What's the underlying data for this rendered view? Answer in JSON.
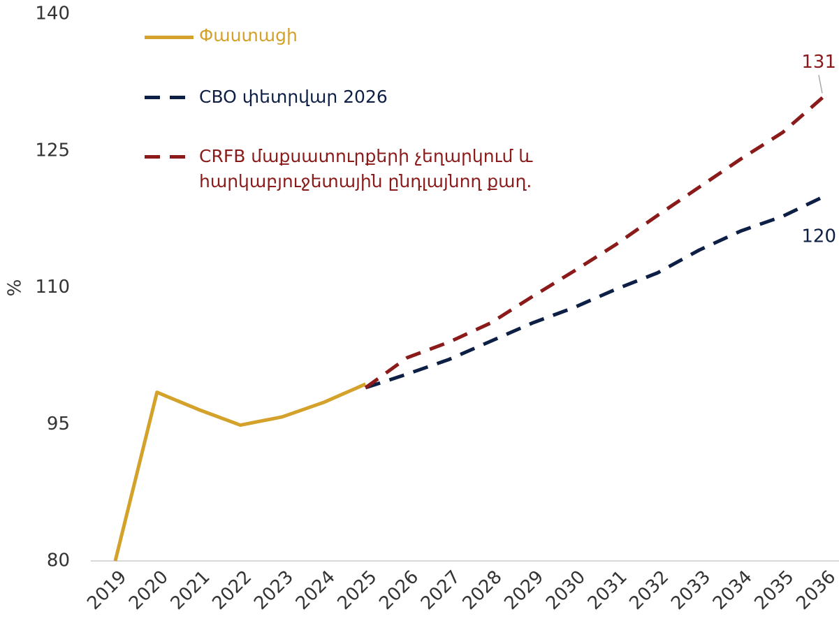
{
  "chart_data": {
    "type": "line",
    "y_label": "%",
    "categories": [
      "2019",
      "2020",
      "2021",
      "2022",
      "2023",
      "2024",
      "2025",
      "2026",
      "2027",
      "2028",
      "2029",
      "2030",
      "2031",
      "2032",
      "2033",
      "2034",
      "2035",
      "2036"
    ],
    "series": [
      {
        "name": "Փաստացի",
        "color": "#d4a12a",
        "dash": false,
        "values": [
          80,
          98.5,
          96.6,
          94.9,
          95.8,
          97.4,
          99.4,
          null,
          null,
          null,
          null,
          null,
          null,
          null,
          null,
          null,
          null,
          null
        ]
      },
      {
        "name": "CBO փետրվար 2026",
        "color": "#0d1f45",
        "dash": true,
        "values": [
          null,
          null,
          null,
          null,
          null,
          null,
          99.0,
          100.5,
          102.1,
          104.1,
          106.1,
          107.8,
          109.8,
          111.6,
          114.1,
          116.2,
          117.8,
          120
        ]
      },
      {
        "name": "CRFB մաքսատուրքերի չեղարկում և հարկաբյուջետային ընդլայնող քաղ.",
        "color": "#8b1a1a",
        "dash": true,
        "values": [
          null,
          null,
          null,
          null,
          null,
          null,
          99.0,
          102.3,
          104.0,
          106.1,
          109.0,
          111.8,
          114.7,
          117.9,
          121.0,
          124.1,
          127.0,
          131
        ]
      }
    ],
    "ylim": [
      80,
      140
    ],
    "yticks": [
      80,
      95,
      110,
      125,
      140
    ],
    "grid": false
  }
}
